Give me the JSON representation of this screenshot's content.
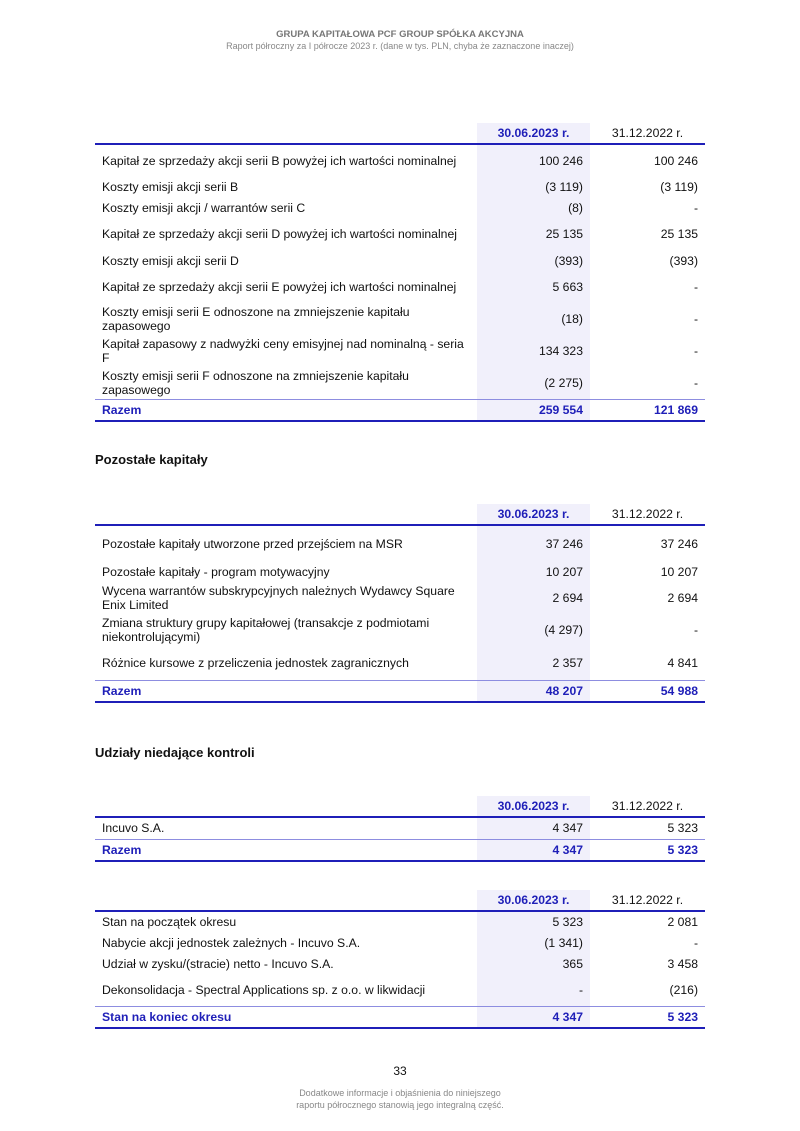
{
  "header": {
    "company": "GRUPA KAPITAŁOWA PCF GROUP SPÓŁKA AKCYJNA",
    "subtitle": "Raport półroczny za I półrocze 2023 r. (dane w tys. PLN, chyba że zaznaczone inaczej)"
  },
  "tables": [
    {
      "cols": [
        "",
        "30.06.2023 r.",
        "31.12.2022 r."
      ],
      "rows": [
        [
          "Kapitał ze sprzedaży akcji serii B powyżej ich wartości nominalnej",
          "100 246",
          "100 246"
        ],
        [
          "Koszty emisji akcji serii B",
          "(3 119)",
          "(3 119)"
        ],
        [
          "Koszty emisji akcji / warrantów serii C",
          "(8)",
          "-"
        ],
        [
          "Kapitał ze sprzedaży akcji serii D powyżej ich wartości nominalnej",
          "25 135",
          "25 135"
        ],
        [
          "Koszty emisji akcji serii D",
          "(393)",
          "(393)"
        ],
        [
          "Kapitał ze sprzedaży akcji serii E powyżej ich wartości nominalnej",
          "5 663",
          "-"
        ],
        [
          "Koszty emisji serii E odnoszone na zmniejszenie kapitału zapasowego",
          "(18)",
          "-"
        ],
        [
          "Kapitał zapasowy z nadwyżki ceny emisyjnej nad nominalną - seria F",
          "134 323",
          "-"
        ],
        [
          "Koszty emisji serii F odnoszone na zmniejszenie kapitału zapasowego",
          "(2 275)",
          "-"
        ]
      ],
      "total": [
        "Razem",
        "259 554",
        "121 869"
      ]
    },
    {
      "title": "Pozostałe kapitały",
      "cols": [
        "",
        "30.06.2023 r.",
        "31.12.2022 r."
      ],
      "rows": [
        [
          "Pozostałe kapitały utworzone przed przejściem na MSR",
          "37 246",
          "37 246"
        ],
        [
          "Pozostałe kapitały - program motywacyjny",
          "10 207",
          "10 207"
        ],
        [
          "Wycena warrantów subskrypcyjnych należnych Wydawcy Square Enix Limited",
          "2 694",
          "2 694"
        ],
        [
          "Zmiana struktury grupy kapitałowej (transakcje z podmiotami niekontrolującymi)",
          "(4 297)",
          "-"
        ],
        [
          "Różnice kursowe z przeliczenia jednostek zagranicznych",
          "2 357",
          "4 841"
        ]
      ],
      "total": [
        "Razem",
        "48 207",
        "54 988"
      ]
    },
    {
      "title": "Udziały niedające kontroli",
      "cols": [
        "",
        "30.06.2023 r.",
        "31.12.2022 r."
      ],
      "rows": [
        [
          "Incuvo S.A.",
          "4 347",
          "5 323"
        ]
      ],
      "total": [
        "Razem",
        "4 347",
        "5 323"
      ]
    },
    {
      "cols": [
        "",
        "30.06.2023 r.",
        "31.12.2022 r."
      ],
      "rows": [
        [
          "Stan na początek okresu",
          "5 323",
          "2 081"
        ],
        [
          "Nabycie akcji jednostek zależnych - Incuvo S.A.",
          "(1 341)",
          "-"
        ],
        [
          "Udział w zysku/(stracie) netto - Incuvo S.A.",
          "365",
          "3 458"
        ],
        [
          "Dekonsolidacja - Spectral Applications sp. z o.o. w likwidacji",
          "-",
          "(216)"
        ]
      ],
      "total": [
        "Stan na koniec okresu",
        "4 347",
        "5 323"
      ]
    }
  ],
  "footer": {
    "page_number": "33",
    "note_line1": "Dodatkowe informacje i objaśnienia do niniejszego",
    "note_line2": "raportu półrocznego stanowią jego integralną część."
  }
}
